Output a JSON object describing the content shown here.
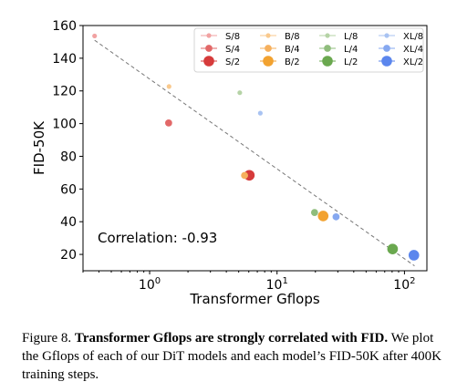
{
  "chart_data": {
    "type": "scatter",
    "xlabel": "Transformer Gflops",
    "ylabel": "FID-50K",
    "x_scale": "log",
    "xlim": [
      0.3,
      150
    ],
    "ylim": [
      10,
      160
    ],
    "x_ticks": [
      {
        "value": 1,
        "base": "10",
        "exp": "0"
      },
      {
        "value": 10,
        "base": "10",
        "exp": "1"
      },
      {
        "value": 100,
        "base": "10",
        "exp": "2"
      }
    ],
    "y_ticks": [
      20,
      40,
      60,
      80,
      100,
      120,
      140,
      160
    ],
    "grid": false,
    "legend_position": "top-right",
    "annotation": "Correlation: -0.93",
    "trend_line": {
      "style": "dashed",
      "color": "#777777",
      "points": [
        [
          0.37,
          151
        ],
        [
          120,
          13
        ]
      ]
    },
    "series": [
      {
        "name": "S/8",
        "color": "#f1a2a2",
        "size": 4,
        "x": 0.37,
        "y": 153.6
      },
      {
        "name": "S/4",
        "color": "#e26868",
        "size": 6,
        "x": 1.41,
        "y": 100.4
      },
      {
        "name": "S/2",
        "color": "#d63b3b",
        "size": 9,
        "x": 6.06,
        "y": 68.4
      },
      {
        "name": "B/8",
        "color": "#f9c98d",
        "size": 4,
        "x": 1.42,
        "y": 122.7
      },
      {
        "name": "B/4",
        "color": "#f6b05d",
        "size": 6,
        "x": 5.56,
        "y": 68.3
      },
      {
        "name": "B/2",
        "color": "#f2a230",
        "size": 9,
        "x": 23.01,
        "y": 43.5
      },
      {
        "name": "L/8",
        "color": "#b5d3a6",
        "size": 4,
        "x": 5.1,
        "y": 118.9
      },
      {
        "name": "L/4",
        "color": "#8fbd7c",
        "size": 6,
        "x": 19.7,
        "y": 45.6
      },
      {
        "name": "L/2",
        "color": "#6aa84f",
        "size": 9,
        "x": 80.7,
        "y": 23.3
      },
      {
        "name": "XL/8",
        "color": "#a9c3f2",
        "size": 4,
        "x": 7.39,
        "y": 106.4
      },
      {
        "name": "XL/4",
        "color": "#86a8f0",
        "size": 6,
        "x": 29.05,
        "y": 43.0
      },
      {
        "name": "XL/2",
        "color": "#5b86ed",
        "size": 9,
        "x": 118.6,
        "y": 19.5
      }
    ]
  },
  "caption": {
    "label": "Figure 8.",
    "title": "Transformer Gflops are strongly correlated with FID.",
    "body": "We plot the Gflops of each of our DiT models and each model’s FID-50K after 400K training steps."
  }
}
